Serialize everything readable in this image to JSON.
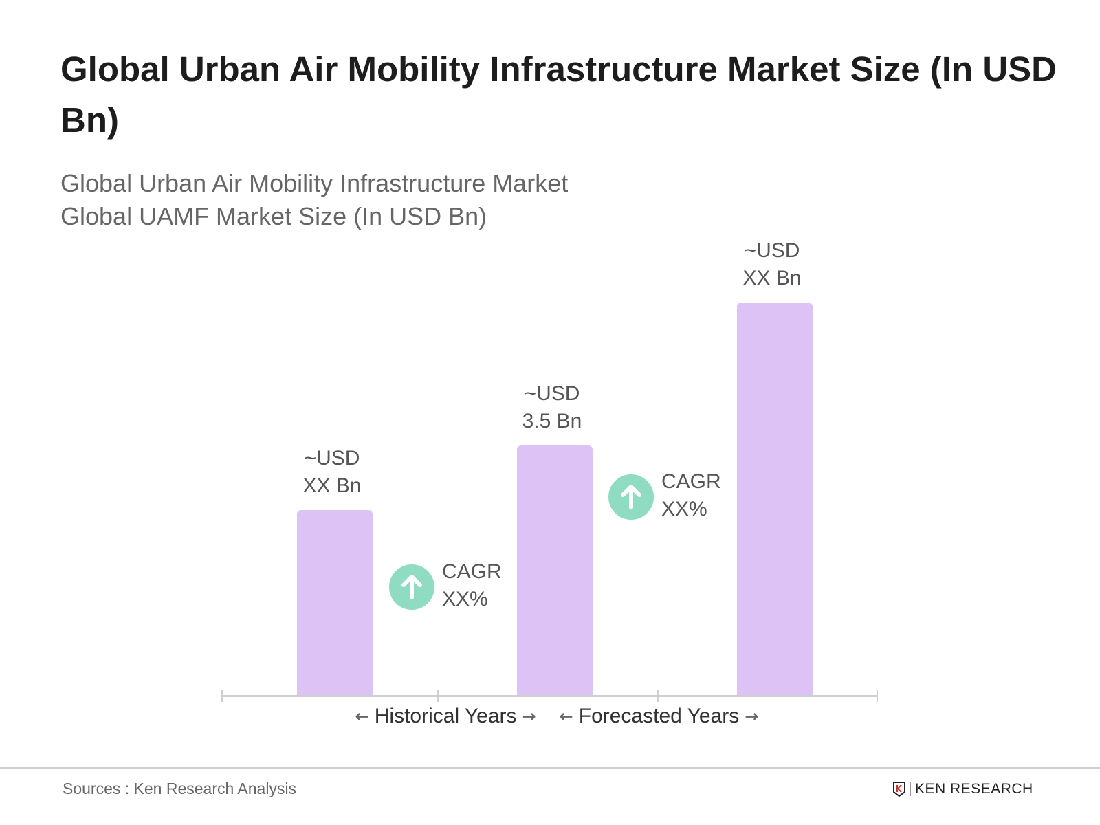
{
  "title": "Global Urban Air Mobility Infrastructure Market Size (In USD Bn)",
  "subtitle_lines": [
    "Global Urban Air Mobility Infrastructure Market",
    "Global UAMF Market Size (In USD Bn)"
  ],
  "chart_data": {
    "type": "bar",
    "title": "Global Urban Air Mobility Infrastructure Market Size (In USD Bn)",
    "categories": [
      "",
      "",
      ""
    ],
    "values": [
      2.6,
      3.5,
      5.5
    ],
    "value_labels": [
      [
        "~USD",
        "XX Bn"
      ],
      [
        "~USD",
        "3.5 Bn"
      ],
      [
        "~USD",
        "XX Bn"
      ]
    ],
    "bar_color": "#dcc2f5",
    "grid": false,
    "axis_sections": [
      "Historical Years",
      "Forecasted Years"
    ],
    "annotations": [
      {
        "label": "CAGR",
        "value": "XX%",
        "icon": "arrow-up-circle-icon",
        "color": "#8fdcc3"
      },
      {
        "label": "CAGR",
        "value": "XX%",
        "icon": "arrow-up-circle-icon",
        "color": "#8fdcc3"
      }
    ]
  },
  "footer": {
    "sources": "Sources : Ken Research Analysis",
    "logo": "KEN RESEARCH"
  }
}
